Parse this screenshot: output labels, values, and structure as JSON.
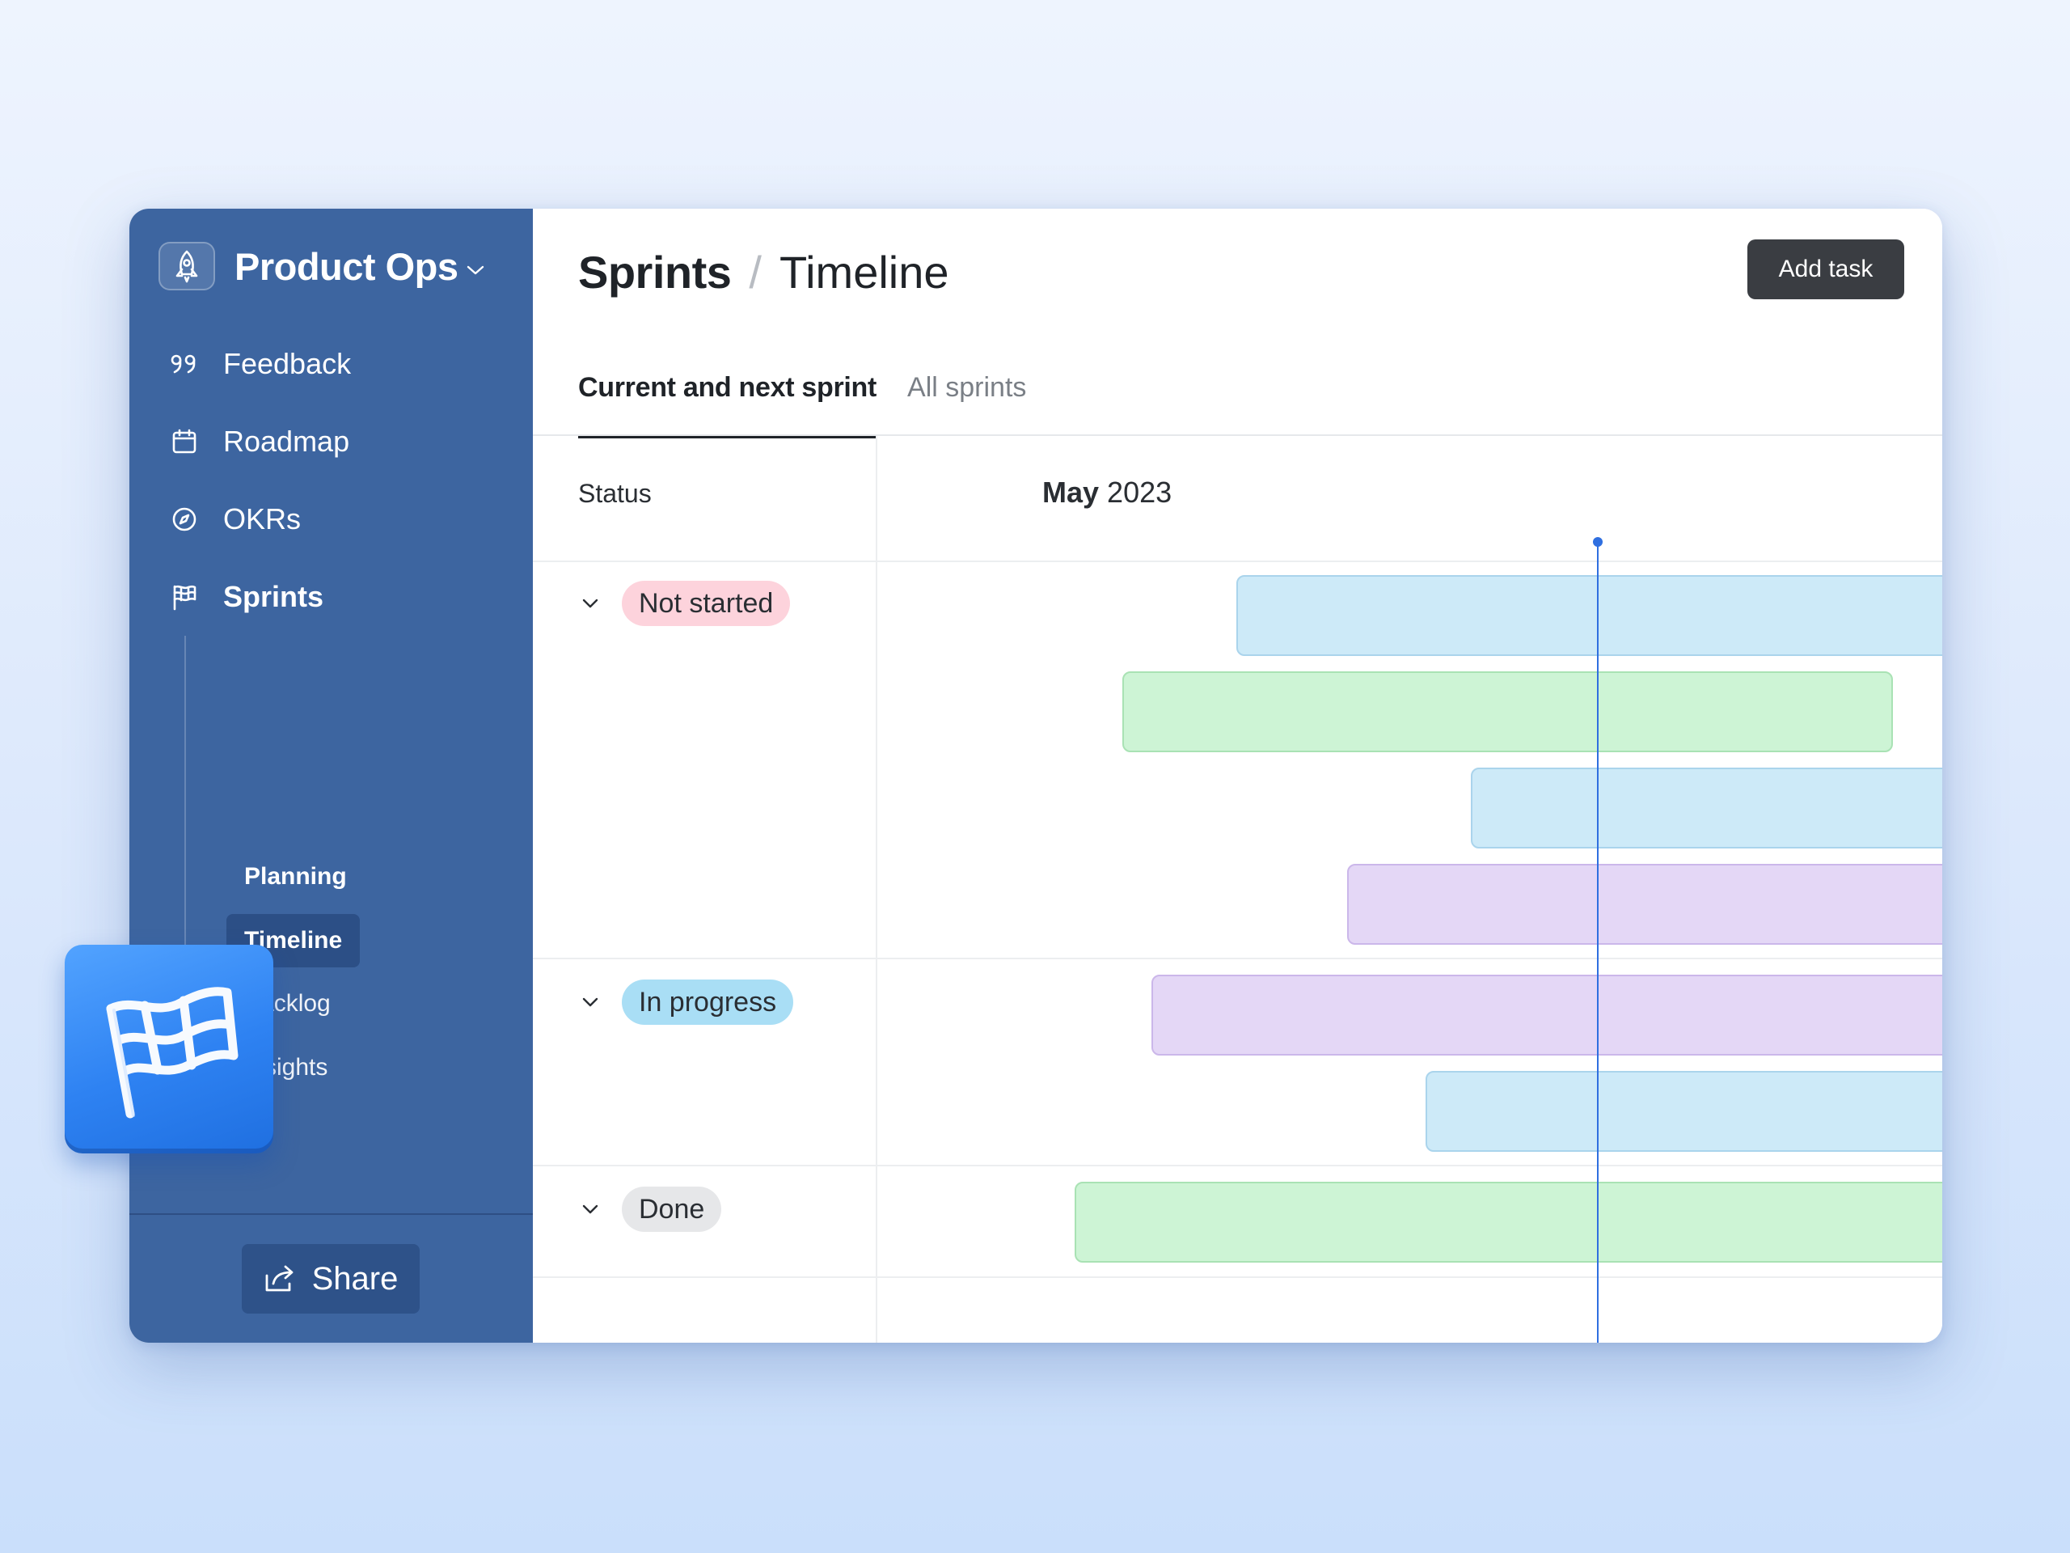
{
  "workspace": {
    "name": "Product Ops"
  },
  "sidebar": {
    "items": [
      {
        "label": "Feedback",
        "icon": "quote-icon"
      },
      {
        "label": "Roadmap",
        "icon": "calendar-icon"
      },
      {
        "label": "OKRs",
        "icon": "compass-icon"
      },
      {
        "label": "Sprints",
        "icon": "flag-icon",
        "active": true
      }
    ],
    "sub_items": [
      {
        "label": "Planning"
      },
      {
        "label": "Timeline",
        "selected": true
      },
      {
        "label": "Backlog"
      },
      {
        "label": "Insights"
      }
    ],
    "share_label": "Share"
  },
  "header": {
    "crumb_parent": "Sprints",
    "crumb_separator": "/",
    "crumb_current": "Timeline",
    "add_task_label": "Add task"
  },
  "tabs": [
    {
      "label": "Current and next sprint",
      "active": true
    },
    {
      "label": "All sprints"
    }
  ],
  "columns": {
    "status_label": "Status",
    "month": "May",
    "year": "2023"
  },
  "groups": [
    {
      "status": "Not started",
      "pill_color": "#fdd3dc",
      "bars": [
        "blue",
        "green",
        "blue",
        "purple"
      ]
    },
    {
      "status": "In progress",
      "pill_color": "#a9def5",
      "bars": [
        "purple",
        "blue"
      ]
    },
    {
      "status": "Done",
      "pill_color": "#e6e7e9",
      "bars": [
        "green"
      ]
    }
  ],
  "colors": {
    "sidebar": "#3d65a0",
    "today_marker": "#2f6fe0",
    "bar_blue": "#cdeaf8",
    "bar_green": "#cdf4d5",
    "bar_purple": "#e4d7f6"
  }
}
